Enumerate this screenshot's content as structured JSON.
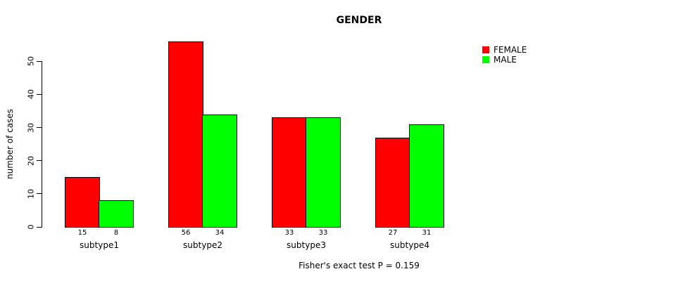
{
  "chart_data": {
    "type": "bar",
    "title": "GENDER",
    "xlabel": "",
    "ylabel": "number of cases",
    "categories": [
      "subtype1",
      "subtype2",
      "subtype3",
      "subtype4"
    ],
    "series": [
      {
        "name": "FEMALE",
        "color": "#ff0000",
        "values": [
          15,
          56,
          33,
          27
        ]
      },
      {
        "name": "MALE",
        "color": "#00ff00",
        "values": [
          8,
          34,
          33,
          31
        ]
      }
    ],
    "yticks": [
      0,
      10,
      20,
      30,
      40,
      50
    ],
    "ylim": [
      0,
      56
    ],
    "grid": false,
    "legend_position": "top-right",
    "value_labels_shown": true,
    "caption": "Fisher's exact test P = 0.159",
    "bar_border_color": "#000000",
    "background_color": "#ffffff"
  }
}
